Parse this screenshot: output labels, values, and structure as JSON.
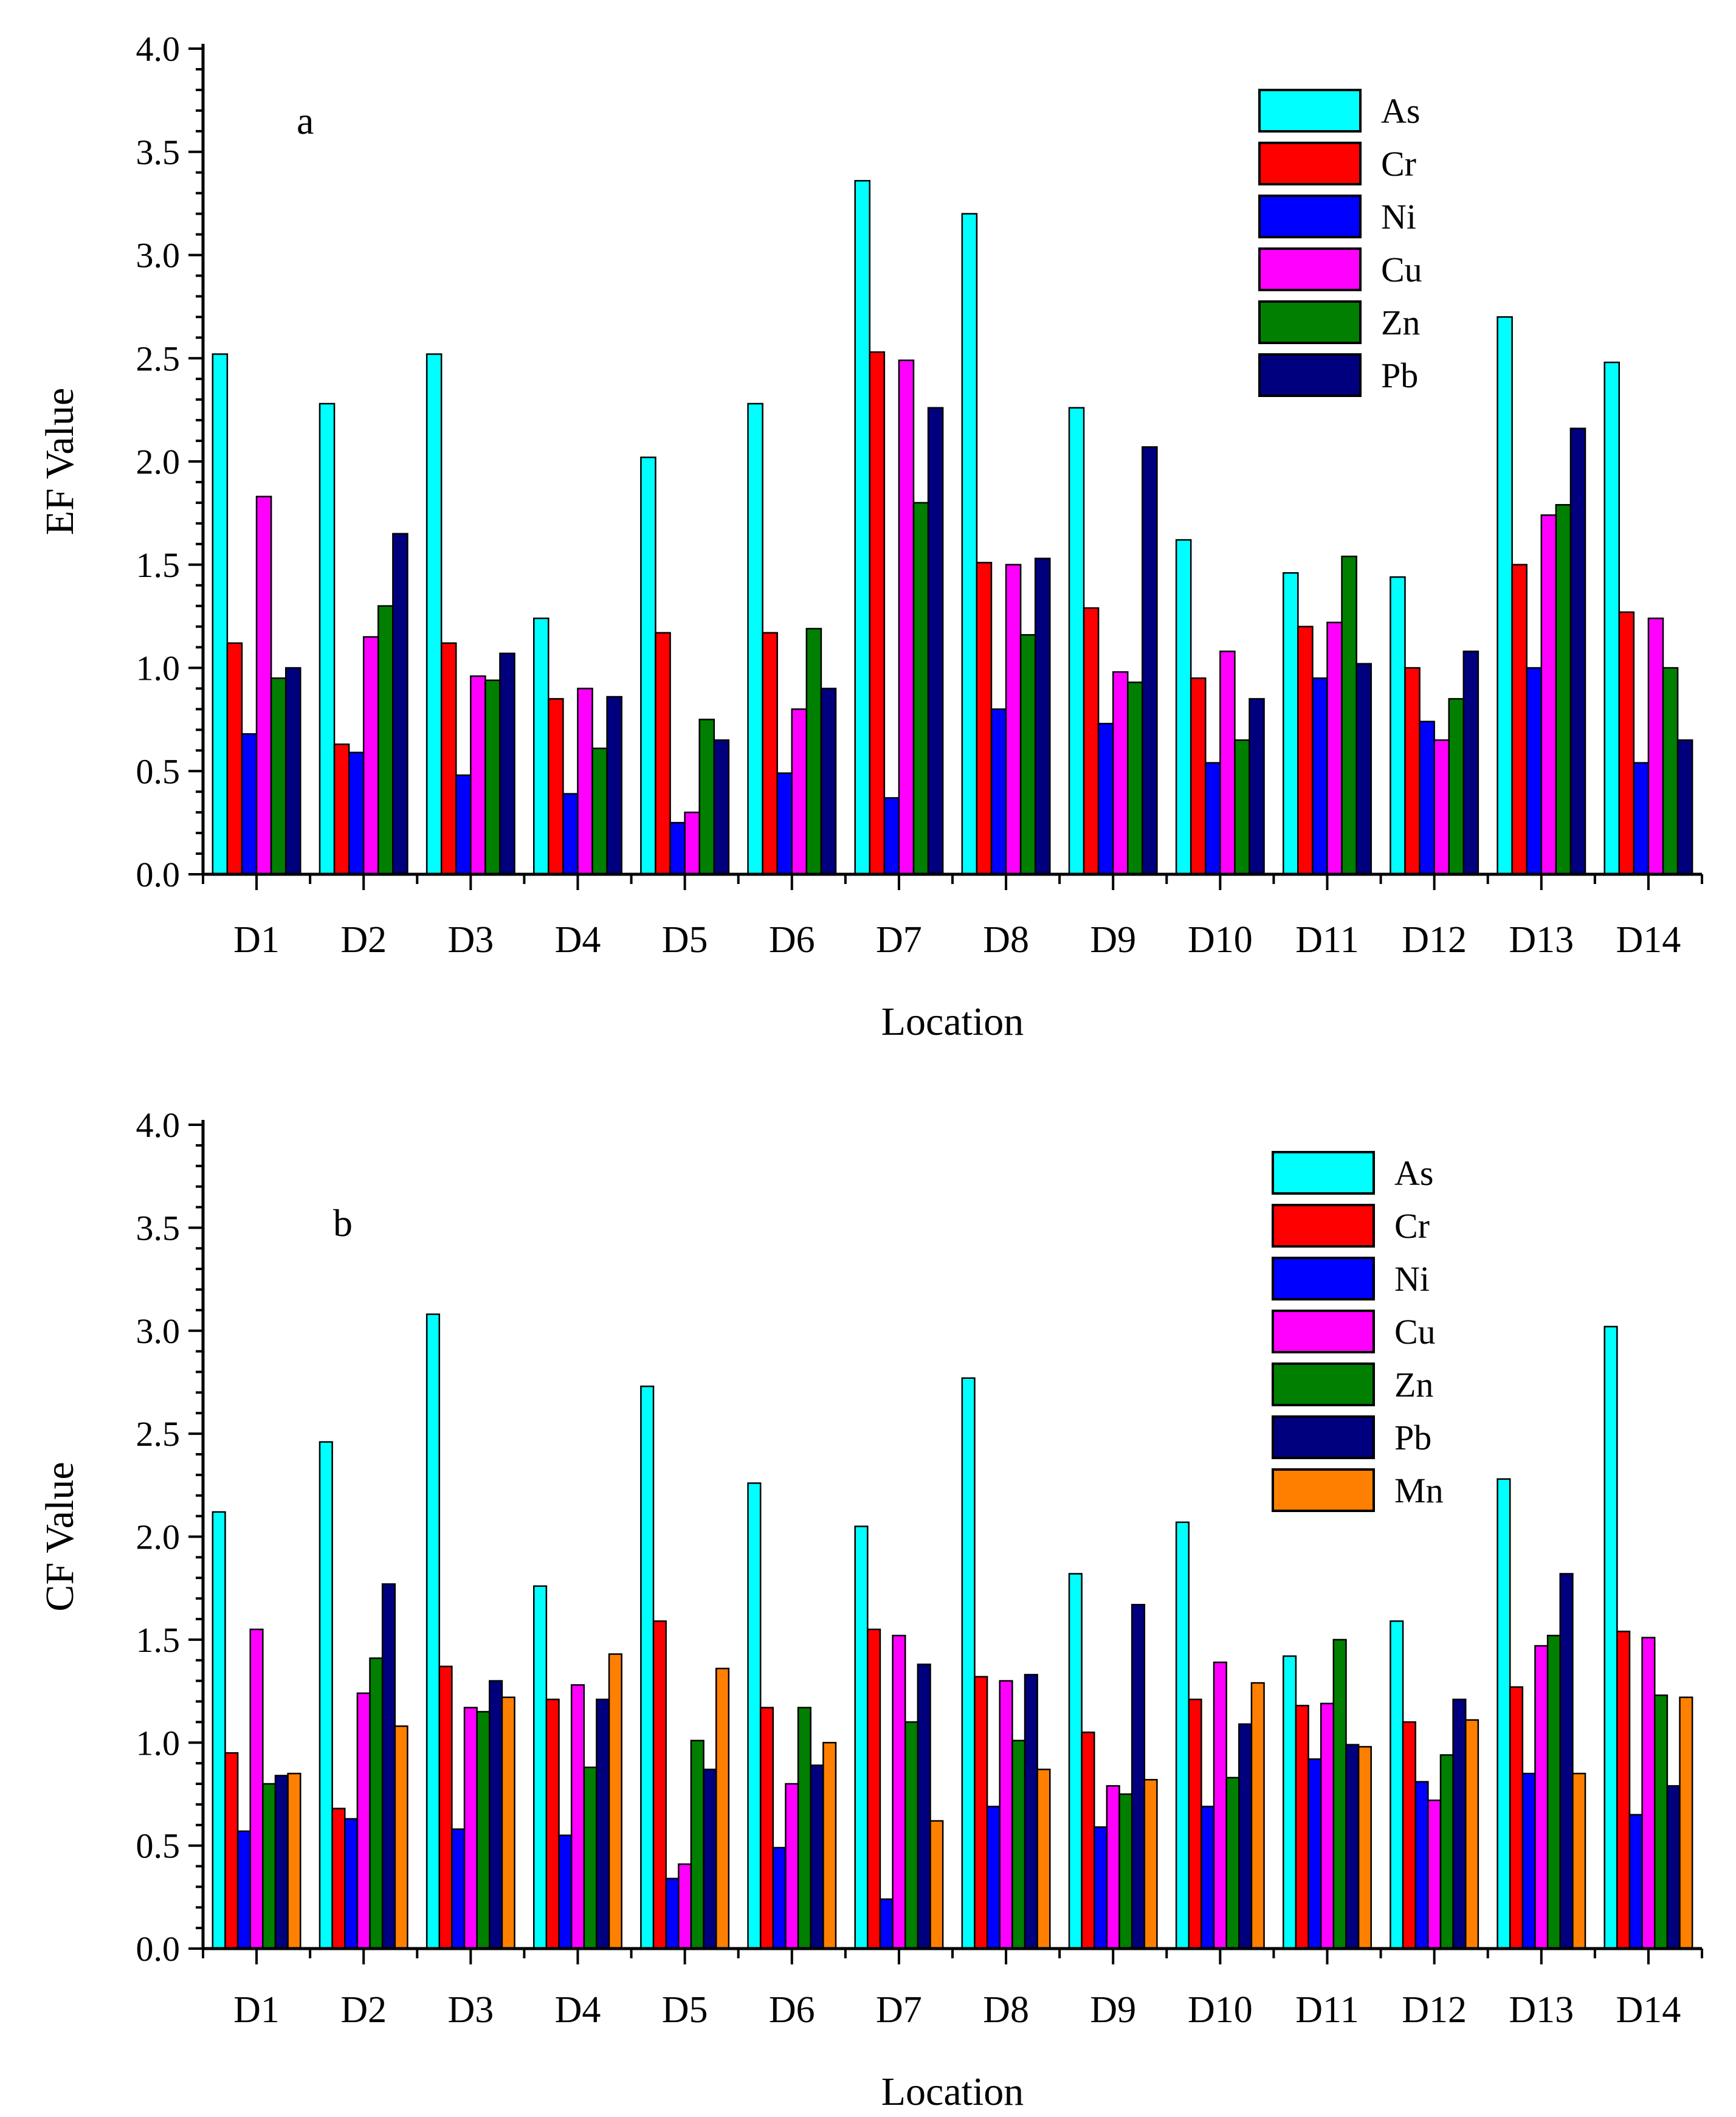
{
  "chart_data": [
    {
      "id": "a",
      "type": "bar",
      "panel_label": "a",
      "categories": [
        "D1",
        "D2",
        "D3",
        "D4",
        "D5",
        "D6",
        "D7",
        "D8",
        "D9",
        "D10",
        "D11",
        "D12",
        "D13",
        "D14"
      ],
      "xlabel": "Location",
      "ylabel": "EF Value",
      "ylim": [
        0,
        4.0
      ],
      "yticks": [
        "0.0",
        "0.5",
        "1.0",
        "1.5",
        "2.0",
        "2.5",
        "3.0",
        "3.5",
        "4.0"
      ],
      "legend_position": "top-right",
      "series": [
        {
          "name": "As",
          "color": "#00FFFF",
          "values": [
            2.52,
            2.28,
            2.52,
            1.24,
            2.02,
            2.28,
            3.36,
            3.2,
            2.26,
            1.62,
            1.46,
            1.44,
            2.7,
            2.48
          ]
        },
        {
          "name": "Cr",
          "color": "#FF0000",
          "values": [
            1.12,
            0.63,
            1.12,
            0.85,
            1.17,
            1.17,
            2.53,
            1.51,
            1.29,
            0.95,
            1.2,
            1.0,
            1.5,
            1.27
          ]
        },
        {
          "name": "Ni",
          "color": "#0000FF",
          "values": [
            0.68,
            0.59,
            0.48,
            0.39,
            0.25,
            0.49,
            0.37,
            0.8,
            0.73,
            0.54,
            0.95,
            0.74,
            1.0,
            0.54
          ]
        },
        {
          "name": "Cu",
          "color": "#FF00FF",
          "values": [
            1.83,
            1.15,
            0.96,
            0.9,
            0.3,
            0.8,
            2.49,
            1.5,
            0.98,
            1.08,
            1.22,
            0.65,
            1.74,
            1.24
          ]
        },
        {
          "name": "Zn",
          "color": "#007F00",
          "values": [
            0.95,
            1.3,
            0.94,
            0.61,
            0.75,
            1.19,
            1.8,
            1.16,
            0.93,
            0.65,
            1.54,
            0.85,
            1.79,
            1.0
          ]
        },
        {
          "name": "Pb",
          "color": "#00007F",
          "values": [
            1.0,
            1.65,
            1.07,
            0.86,
            0.65,
            0.9,
            2.26,
            1.53,
            2.07,
            0.85,
            1.02,
            1.08,
            2.16,
            0.65
          ]
        }
      ]
    },
    {
      "id": "b",
      "type": "bar",
      "panel_label": "b",
      "categories": [
        "D1",
        "D2",
        "D3",
        "D4",
        "D5",
        "D6",
        "D7",
        "D8",
        "D9",
        "D10",
        "D11",
        "D12",
        "D13",
        "D14"
      ],
      "xlabel": "Location",
      "ylabel": "CF Value",
      "ylim": [
        0,
        4.0
      ],
      "yticks": [
        "0.0",
        "0.5",
        "1.0",
        "1.5",
        "2.0",
        "2.5",
        "3.0",
        "3.5",
        "4.0"
      ],
      "legend_position": "top-right",
      "series": [
        {
          "name": "As",
          "color": "#00FFFF",
          "values": [
            2.12,
            2.46,
            3.08,
            1.76,
            2.73,
            2.26,
            2.05,
            2.77,
            1.82,
            2.07,
            1.42,
            1.59,
            2.28,
            3.02
          ]
        },
        {
          "name": "Cr",
          "color": "#FF0000",
          "values": [
            0.95,
            0.68,
            1.37,
            1.21,
            1.59,
            1.17,
            1.55,
            1.32,
            1.05,
            1.21,
            1.18,
            1.1,
            1.27,
            1.54
          ]
        },
        {
          "name": "Ni",
          "color": "#0000FF",
          "values": [
            0.57,
            0.63,
            0.58,
            0.55,
            0.34,
            0.49,
            0.24,
            0.69,
            0.59,
            0.69,
            0.92,
            0.81,
            0.85,
            0.65
          ]
        },
        {
          "name": "Cu",
          "color": "#FF00FF",
          "values": [
            1.55,
            1.24,
            1.17,
            1.28,
            0.41,
            0.8,
            1.52,
            1.3,
            0.79,
            1.39,
            1.19,
            0.72,
            1.47,
            1.51
          ]
        },
        {
          "name": "Zn",
          "color": "#007F00",
          "values": [
            0.8,
            1.41,
            1.15,
            0.88,
            1.01,
            1.17,
            1.1,
            1.01,
            0.75,
            0.83,
            1.5,
            0.94,
            1.52,
            1.23
          ]
        },
        {
          "name": "Pb",
          "color": "#00007F",
          "values": [
            0.84,
            1.77,
            1.3,
            1.21,
            0.87,
            0.89,
            1.38,
            1.33,
            1.67,
            1.09,
            0.99,
            1.21,
            1.82,
            0.79
          ]
        },
        {
          "name": "Mn",
          "color": "#FF8000",
          "values": [
            0.85,
            1.08,
            1.22,
            1.43,
            1.36,
            1.0,
            0.62,
            0.87,
            0.82,
            1.29,
            0.98,
            1.11,
            0.85,
            1.22
          ]
        }
      ]
    }
  ]
}
